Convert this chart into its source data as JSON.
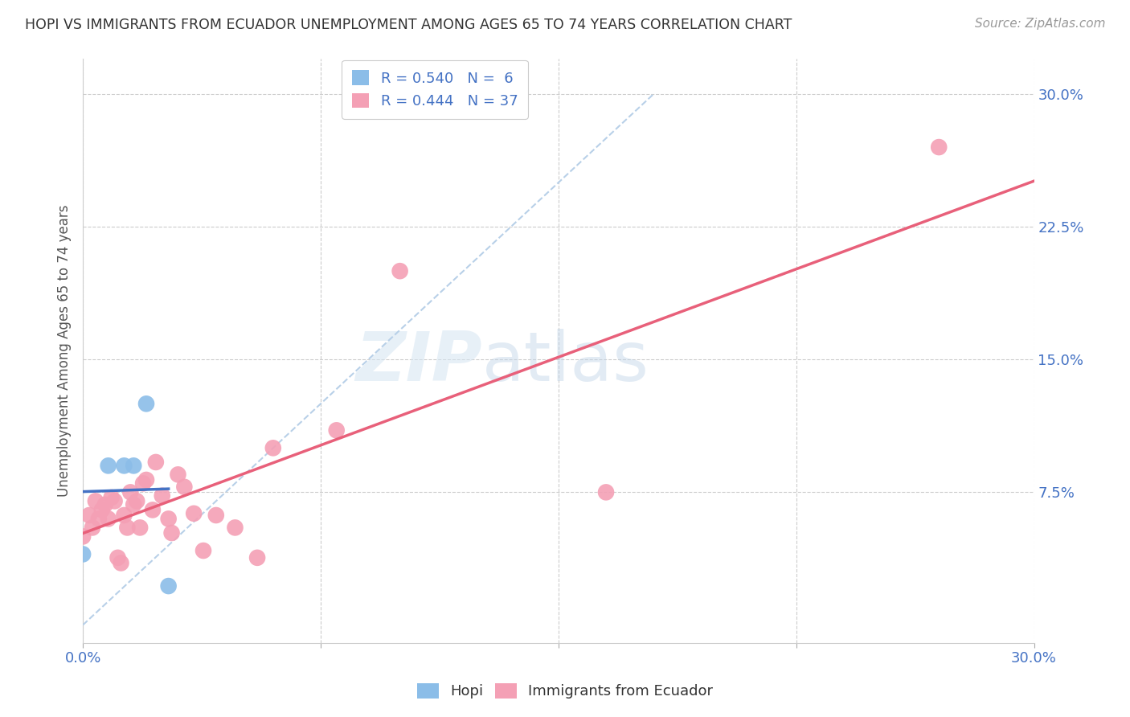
{
  "title": "HOPI VS IMMIGRANTS FROM ECUADOR UNEMPLOYMENT AMONG AGES 65 TO 74 YEARS CORRELATION CHART",
  "source": "Source: ZipAtlas.com",
  "ylabel": "Unemployment Among Ages 65 to 74 years",
  "xlabel": "",
  "xlim": [
    0.0,
    0.3
  ],
  "ylim": [
    -0.01,
    0.32
  ],
  "xticks": [
    0.0,
    0.075,
    0.15,
    0.225,
    0.3
  ],
  "yticks": [
    0.075,
    0.15,
    0.225,
    0.3
  ],
  "ytick_labels": [
    "7.5%",
    "15.0%",
    "22.5%",
    "30.0%"
  ],
  "xtick_labels": [
    "0.0%",
    "",
    "",
    "",
    "30.0%"
  ],
  "hopi_color": "#8BBDE8",
  "ecuador_color": "#F4A0B5",
  "hopi_line_color": "#4472C4",
  "ecuador_line_color": "#E8607A",
  "diagonal_color": "#B8D0E8",
  "hopi_R": 0.54,
  "hopi_N": 6,
  "ecuador_R": 0.444,
  "ecuador_N": 37,
  "hopi_scatter_x": [
    0.0,
    0.008,
    0.013,
    0.016,
    0.02,
    0.027
  ],
  "hopi_scatter_y": [
    0.04,
    0.09,
    0.09,
    0.09,
    0.125,
    0.022
  ],
  "ecuador_scatter_x": [
    0.0,
    0.002,
    0.003,
    0.004,
    0.005,
    0.006,
    0.007,
    0.008,
    0.009,
    0.01,
    0.011,
    0.012,
    0.013,
    0.014,
    0.015,
    0.016,
    0.017,
    0.018,
    0.019,
    0.02,
    0.022,
    0.023,
    0.025,
    0.027,
    0.028,
    0.03,
    0.032,
    0.035,
    0.038,
    0.042,
    0.048,
    0.055,
    0.06,
    0.08,
    0.1,
    0.165,
    0.27
  ],
  "ecuador_scatter_y": [
    0.05,
    0.062,
    0.055,
    0.07,
    0.06,
    0.065,
    0.068,
    0.06,
    0.072,
    0.07,
    0.038,
    0.035,
    0.062,
    0.055,
    0.075,
    0.068,
    0.07,
    0.055,
    0.08,
    0.082,
    0.065,
    0.092,
    0.073,
    0.06,
    0.052,
    0.085,
    0.078,
    0.063,
    0.042,
    0.062,
    0.055,
    0.038,
    0.1,
    0.11,
    0.2,
    0.075,
    0.27
  ],
  "watermark_zip": "ZIP",
  "watermark_atlas": "atlas",
  "background_color": "#FFFFFF",
  "grid_color": "#CCCCCC"
}
